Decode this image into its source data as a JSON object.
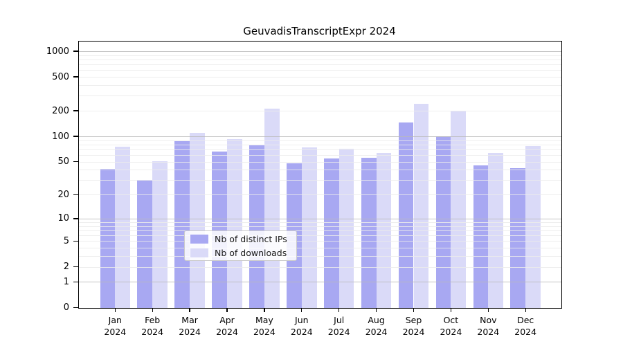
{
  "chart_data": {
    "type": "bar",
    "title": "GeuvadisTranscriptExpr 2024",
    "categories": [
      "Jan 2024",
      "Feb 2024",
      "Mar 2024",
      "Apr 2024",
      "May 2024",
      "Jun 2024",
      "Jul 2024",
      "Aug 2024",
      "Sep 2024",
      "Oct 2024",
      "Nov 2024",
      "Dec 2024"
    ],
    "x_tick_months": [
      "Jan",
      "Feb",
      "Mar",
      "Apr",
      "May",
      "Jun",
      "Jul",
      "Aug",
      "Sep",
      "Oct",
      "Nov",
      "Dec"
    ],
    "x_tick_year": "2024",
    "series": [
      {
        "name": "Nb of distinct IPs",
        "color": "#a8a8f2",
        "values": [
          41,
          30,
          88,
          66,
          79,
          48,
          55,
          56,
          145,
          100,
          45,
          42
        ]
      },
      {
        "name": "Nb of downloads",
        "color": "#dadaf8",
        "values": [
          76,
          51,
          110,
          92,
          211,
          74,
          71,
          63,
          242,
          200,
          63,
          77
        ]
      }
    ],
    "xlabel": "",
    "ylabel": "",
    "yscale": "log1p",
    "y_ticks": [
      0,
      1,
      2,
      5,
      10,
      20,
      50,
      100,
      200,
      500,
      1000
    ],
    "ylim": [
      0,
      1250
    ],
    "grid": true,
    "legend_position": "lower center",
    "legend": [
      "Nb of distinct IPs",
      "Nb of downloads"
    ]
  },
  "colors": {
    "bar_distinct_ips": "#a8a8f2",
    "bar_downloads": "#dadaf8",
    "grid_minor": "#ebebeb",
    "grid_major": "#b9b9b9",
    "axis": "#000000",
    "legend_border": "#cccccc"
  }
}
